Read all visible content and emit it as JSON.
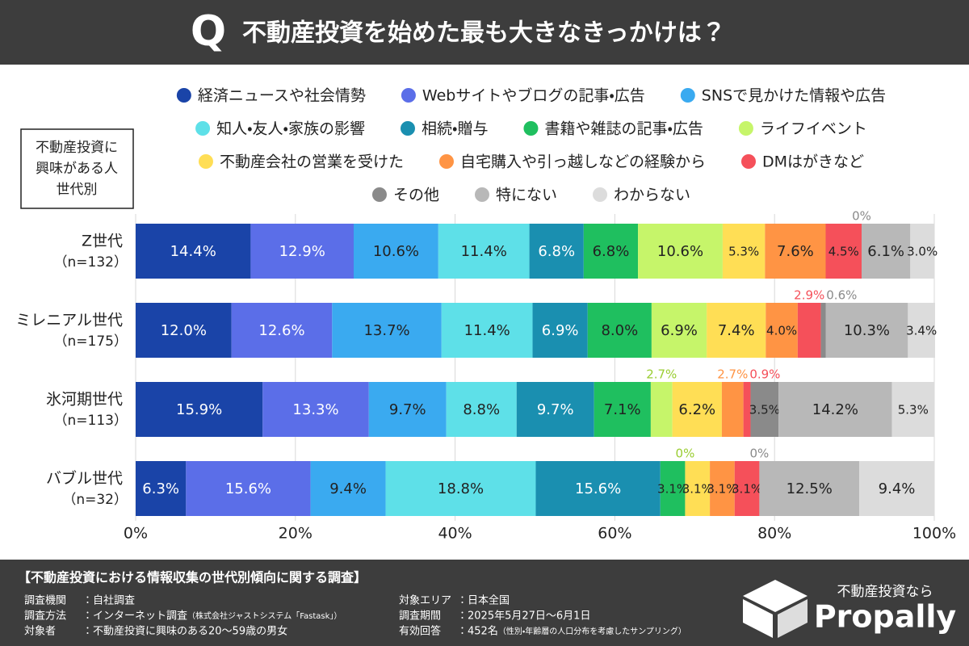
{
  "chart_data": {
    "type": "stacked-bar-horizontal",
    "title": "不動産投資を始めた最も大きなきっかけは？",
    "title_icon": "Q",
    "panel_label": [
      "不動産投資に",
      "興味がある人",
      "世代別"
    ],
    "categories": [
      "Z世代",
      "ミレニアル世代",
      "氷河期世代",
      "バブル世代"
    ],
    "sample_sizes": [
      "（n=132）",
      "（n=175）",
      "（n=113）",
      "（n=32）"
    ],
    "xlim": [
      0,
      100
    ],
    "xticks": [
      {
        "value": 0,
        "label": "0%"
      },
      {
        "value": 20,
        "label": "20%"
      },
      {
        "value": 40,
        "label": "40%"
      },
      {
        "value": 60,
        "label": "60%"
      },
      {
        "value": 80,
        "label": "80%"
      },
      {
        "value": 100,
        "label": "100%"
      }
    ],
    "grid": true,
    "series": [
      {
        "name": "経済ニュースや社会情勢",
        "color": "#1a44a8",
        "values": [
          14.4,
          12.0,
          15.9,
          6.3
        ],
        "value_labels": [
          "14.4%",
          "12.0%",
          "15.9%",
          "6.3%"
        ]
      },
      {
        "name": "Webサイトやブログの記事・広告",
        "color": "#5b6ee8",
        "values": [
          12.9,
          12.6,
          13.3,
          15.6
        ],
        "value_labels": [
          "12.9%",
          "12.6%",
          "13.3%",
          "15.6%"
        ]
      },
      {
        "name": "SNSで見かけた情報や広告",
        "color": "#3aaaf0",
        "values": [
          10.6,
          13.7,
          9.7,
          9.4
        ],
        "value_labels": [
          "10.6%",
          "13.7%",
          "9.7%",
          "9.4%"
        ]
      },
      {
        "name": "知人・友人・家族の影響",
        "color": "#5ee0e8",
        "values": [
          11.4,
          11.4,
          8.8,
          18.8
        ],
        "value_labels": [
          "11.4%",
          "11.4%",
          "8.8%",
          "18.8%"
        ]
      },
      {
        "name": "相続・贈与",
        "color": "#1a8fb0",
        "values": [
          6.8,
          6.9,
          9.7,
          15.6
        ],
        "value_labels": [
          "6.8%",
          "6.9%",
          "9.7%",
          "15.6%"
        ]
      },
      {
        "name": "書籍や雑誌の記事・広告",
        "color": "#1fbf5f",
        "values": [
          6.8,
          8.0,
          7.1,
          3.1
        ],
        "value_labels": [
          "6.8%",
          "8.0%",
          "7.1%",
          "3.1%"
        ]
      },
      {
        "name": "ライフイベント",
        "color": "#c6f56a",
        "values": [
          10.6,
          6.9,
          2.7,
          0
        ],
        "value_labels": [
          "10.6%",
          "6.9%",
          "2.7%",
          "0%"
        ]
      },
      {
        "name": "不動産会社の営業を受けた",
        "color": "#ffde55",
        "values": [
          5.3,
          7.4,
          6.2,
          3.1
        ],
        "value_labels": [
          "5.3%",
          "7.4%",
          "6.2%",
          "3.1%"
        ]
      },
      {
        "name": "自宅購入や引っ越しなどの経験から",
        "color": "#ff9444",
        "values": [
          7.6,
          4.0,
          2.7,
          3.1
        ],
        "value_labels": [
          "7.6%",
          "4.0%",
          "2.7%",
          "3.1%"
        ]
      },
      {
        "name": "DMはがきなど",
        "color": "#f5505a",
        "values": [
          4.5,
          2.9,
          0.9,
          3.1
        ],
        "value_labels": [
          "4.5%",
          "2.9%",
          "0.9%",
          "3.1%"
        ]
      },
      {
        "name": "その他",
        "color": "#8a8a8a",
        "values": [
          0,
          0.6,
          3.5,
          0
        ],
        "value_labels": [
          "0%",
          "0.6%",
          "3.5%",
          "0%"
        ]
      },
      {
        "name": "特にない",
        "color": "#b8b8b8",
        "values": [
          6.1,
          10.3,
          14.2,
          12.5
        ],
        "value_labels": [
          "6.1%",
          "10.3%",
          "14.2%",
          "12.5%"
        ]
      },
      {
        "name": "わからない",
        "color": "#dcdcdc",
        "values": [
          3.0,
          3.4,
          5.3,
          9.4
        ],
        "value_labels": [
          "3.0%",
          "3.4%",
          "5.3%",
          "9.4%"
        ]
      }
    ]
  },
  "footer": {
    "heading": "【不動産投資における情報収集の世代別傾向に関する調査】",
    "items": [
      {
        "label": "調査機関",
        "value": "：自社調査",
        "note": ""
      },
      {
        "label": "調査方法",
        "value": "：インターネット調査",
        "note": "（株式会社ジャストシステム「Fastask」）"
      },
      {
        "label": "対象者",
        "value": "：不動産投資に興味のある20～59歳の男女",
        "note": ""
      },
      {
        "label": "対象エリア",
        "value": "：日本全国",
        "note": ""
      },
      {
        "label": "調査期間",
        "value": "：2025年5月27日～6月1日",
        "note": ""
      },
      {
        "label": "有効回答",
        "value": "：452名",
        "note": "（性別・年齢層の人口分布を考慮したサンプリング）"
      }
    ],
    "logo_tagline": "不動産投資なら",
    "logo_name": "Propally"
  }
}
